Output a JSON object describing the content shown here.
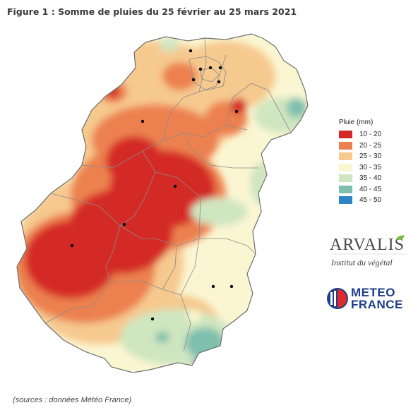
{
  "figure_title": "Figure 1 : Somme de pluies du 25 février au 25 mars 2021",
  "source": "(sources : données Météo France)",
  "legend": {
    "title": "Pluie (mm)",
    "classes": [
      {
        "label": "10 - 20",
        "color": "#d42a27"
      },
      {
        "label": "20 - 25",
        "color": "#ec8150"
      },
      {
        "label": "25 - 30",
        "color": "#f6c98f"
      },
      {
        "label": "30 - 35",
        "color": "#fbf6d2"
      },
      {
        "label": "35 - 40",
        "color": "#cfe6c0"
      },
      {
        "label": "40 - 45",
        "color": "#7fbfae"
      },
      {
        "label": "45 - 50",
        "color": "#2e85c6"
      }
    ]
  },
  "logos": {
    "arvalis_name": "ARVALIS",
    "arvalis_tagline": "Institut du végétal",
    "meteo_line1": "METEO",
    "meteo_line2": "FRANCE"
  },
  "colors": {
    "map_border": "#7a7a7a",
    "city_marker": "#000000"
  }
}
